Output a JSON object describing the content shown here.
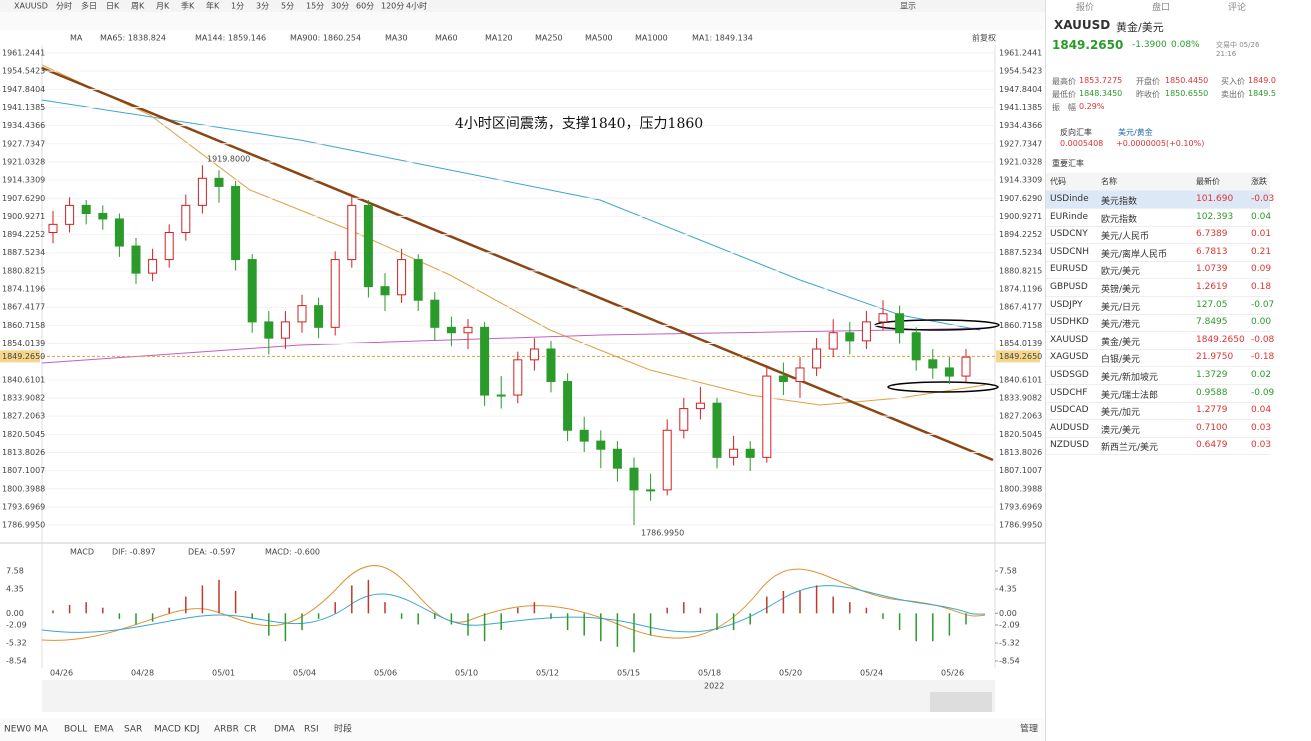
{
  "toolbar": {
    "symbol": "XAUUSD",
    "periods": [
      "分时",
      "多日",
      "日K",
      "周K",
      "月K",
      "季K",
      "年K",
      "1分",
      "3分",
      "5分",
      "15分",
      "30分",
      "60分",
      "120分",
      "4小时"
    ],
    "display": "显示",
    "tabs": [
      "报价",
      "盘口",
      "评论"
    ]
  },
  "chart_data": {
    "type": "candlestick",
    "header": [
      "MA",
      "MA65: 1838.824",
      "MA144: 1859.146",
      "MA900: 1860.254",
      "MA30",
      "MA60",
      "MA120",
      "MA250",
      "MA500",
      "MA1000",
      "MA1: 1849.134"
    ],
    "adjust": "前复权",
    "annotation": "4小时区间震荡，支撑1840，压力1860",
    "high_label": "1919.8000",
    "low_label": "1786.9950",
    "dates": [
      "04/26",
      "04/28",
      "05/01",
      "05/04",
      "05/06",
      "05/10",
      "05/12",
      "05/15",
      "05/18",
      "05/20",
      "05/24",
      "05/26"
    ],
    "year": "2022",
    "up_color": "#d42020",
    "down_color": "#2a9a2a",
    "open": [
      1895,
      1898,
      1905,
      1902,
      1900,
      1890,
      1880,
      1885,
      1895,
      1905,
      1915,
      1912,
      1885,
      1862,
      1856,
      1862,
      1868,
      1860,
      1885,
      1905,
      1875,
      1872,
      1885,
      1870,
      1860,
      1858,
      1860,
      1835,
      1835,
      1848,
      1852,
      1840,
      1822,
      1818,
      1815,
      1808,
      1800,
      1800,
      1822,
      1830,
      1832,
      1812,
      1815,
      1812,
      1842,
      1840,
      1845,
      1852,
      1858,
      1855,
      1862,
      1865,
      1858,
      1848,
      1845,
      1842
    ],
    "high": [
      1903,
      1908,
      1907,
      1905,
      1902,
      1893,
      1889,
      1898,
      1909,
      1919.8,
      1918,
      1914,
      1887,
      1866,
      1866,
      1872,
      1871,
      1888,
      1909,
      1907,
      1880,
      1889,
      1887,
      1873,
      1864,
      1863,
      1862,
      1842,
      1851,
      1856,
      1855,
      1843,
      1827,
      1822,
      1818,
      1812,
      1806,
      1826,
      1834,
      1838,
      1834,
      1820,
      1818,
      1846,
      1847,
      1849,
      1856,
      1863,
      1862,
      1866,
      1870,
      1868,
      1860,
      1852,
      1849,
      1852
    ],
    "low": [
      1891,
      1895,
      1898,
      1896,
      1886,
      1876,
      1877,
      1882,
      1892,
      1902,
      1906,
      1881,
      1858,
      1850,
      1852,
      1858,
      1856,
      1857,
      1882,
      1871,
      1866,
      1869,
      1866,
      1855,
      1853,
      1852,
      1831,
      1830,
      1832,
      1844,
      1836,
      1818,
      1814,
      1808,
      1803,
      1786.995,
      1796,
      1798,
      1819,
      1826,
      1808,
      1809,
      1807,
      1810,
      1835,
      1834,
      1842,
      1849,
      1850,
      1852,
      1859,
      1854,
      1844,
      1841,
      1839,
      1840
    ],
    "close": [
      1898,
      1905,
      1902,
      1900,
      1890,
      1880,
      1885,
      1895,
      1905,
      1915,
      1912,
      1885,
      1862,
      1856,
      1862,
      1868,
      1860,
      1885,
      1905,
      1875,
      1872,
      1885,
      1870,
      1860,
      1858,
      1860,
      1835,
      1835,
      1848,
      1852,
      1840,
      1822,
      1818,
      1815,
      1808,
      1800,
      1800,
      1822,
      1830,
      1832,
      1812,
      1815,
      1812,
      1842,
      1840,
      1845,
      1852,
      1858,
      1855,
      1862,
      1865,
      1858,
      1848,
      1845,
      1842,
      1849
    ],
    "ylim": [
      1781.5,
      1964.2
    ],
    "yticks": [
      1961.2441,
      1954.5423,
      1947.8404,
      1941.1385,
      1934.4366,
      1927.7347,
      1921.0328,
      1914.3309,
      {
        "value": 1907.629,
        "label": "1907.6290"
      },
      1900.9271,
      1894.2252,
      1887.5234,
      1880.8215,
      1874.1196,
      1867.4177,
      1860.7158,
      1854.0139,
      1840.6101,
      1833.9082,
      1827.2063,
      1820.5045,
      1813.8026,
      1807.1007,
      1800.3988,
      1793.6969,
      {
        "value": 1786.995,
        "label": "1786.9950"
      }
    ],
    "last": {
      "value": 1849.265,
      "label": "1849.2650"
    }
  },
  "macd": {
    "type": "bar",
    "header": [
      "MACD",
      "DIF: -0.897",
      "DEA: -0.597",
      "MACD: -0.600"
    ],
    "values": [
      0.5,
      1.5,
      2,
      1,
      -1,
      -2,
      -1.5,
      1,
      3,
      5,
      6,
      4,
      -1,
      -4,
      -5,
      -3,
      -1,
      2,
      5,
      6,
      2,
      -1,
      -2,
      -1,
      -2,
      -4,
      -5,
      -3,
      1,
      2,
      -1,
      -3,
      -4,
      -5,
      -6,
      -7,
      -4,
      1,
      2,
      1,
      -3,
      -3,
      -2,
      3,
      4,
      4,
      5,
      3,
      2,
      1,
      -1,
      -3,
      -5,
      -5,
      -4,
      -2
    ],
    "ylim": [
      -9.8,
      9.55
    ],
    "yticks": [
      7.58,
      4.35,
      {
        "value": 0,
        "label": "0.00"
      },
      -2.09,
      -5.32,
      -8.54
    ],
    "up_color": "#c0392b",
    "down_color": "#2a9a2a"
  },
  "indicators": [
    "NEW0",
    "MA",
    "BOLL",
    "EMA",
    "SAR",
    "MACD",
    "KDJ",
    "ARBR",
    "CR",
    "DMA",
    "RSI",
    "时段"
  ],
  "manage": "管理",
  "quote": {
    "symbol": "XAUUSD",
    "name": "黄金/美元",
    "price": "1849.2650",
    "change": "-1.3900",
    "pct": "0.08%",
    "status": "交易中 05/26 21:16",
    "stats": [
      [
        "最高价",
        "1853.7275",
        "开盘价",
        "1850.4450",
        "买入价",
        "1849.0"
      ],
      [
        "最低价",
        "1848.3450",
        "昨收价",
        "1850.6550",
        "卖出价",
        "1849.5"
      ]
    ],
    "amp_label": "振　幅",
    "amp": "0.29%",
    "reverse_label": "反向汇率",
    "reverse_pair": "美元/黄金",
    "reverse_value": "0.0005408",
    "reverse_change": "+0.0000005(+0.10%)",
    "section": "重要汇率"
  },
  "table": {
    "headers": [
      "代码",
      "名称",
      "最新价",
      "涨跌"
    ],
    "rows": [
      [
        "USDinde",
        "美元指数",
        "101.690",
        "-0.03",
        "#d33"
      ],
      [
        "EURinde",
        "欧元指数",
        "102.393",
        "0.04",
        "#2a9a2a"
      ],
      [
        "USDCNY",
        "美元/人民币",
        "6.7389",
        "0.01",
        "#d33"
      ],
      [
        "USDCNH",
        "美元/离岸人民币",
        "6.7813",
        "0.21",
        "#d33"
      ],
      [
        "EURUSD",
        "欧元/美元",
        "1.0739",
        "0.09",
        "#d33"
      ],
      [
        "GBPUSD",
        "英镑/美元",
        "1.2619",
        "0.18",
        "#d33"
      ],
      [
        "USDJPY",
        "美元/日元",
        "127.05",
        "-0.07",
        "#2a9a2a"
      ],
      [
        "USDHKD",
        "美元/港元",
        "7.8495",
        "0.00",
        "#2a9a2a"
      ],
      [
        "XAUUSD",
        "黄金/美元",
        "1849.2650",
        "-0.08",
        "#d33"
      ],
      [
        "XAGUSD",
        "白银/美元",
        "21.9750",
        "-0.18",
        "#d33"
      ],
      [
        "USDSGD",
        "美元/新加坡元",
        "1.3729",
        "0.02",
        "#2a9a2a"
      ],
      [
        "USDCHF",
        "美元/瑞士法郎",
        "0.9588",
        "-0.09",
        "#2a9a2a"
      ],
      [
        "USDCAD",
        "美元/加元",
        "1.2779",
        "0.04",
        "#d33"
      ],
      [
        "AUDUSD",
        "澳元/美元",
        "0.7100",
        "0.03",
        "#d33"
      ],
      [
        "NZDUSD",
        "新西兰元/美元",
        "0.6479",
        "0.03",
        "#d33"
      ]
    ]
  }
}
